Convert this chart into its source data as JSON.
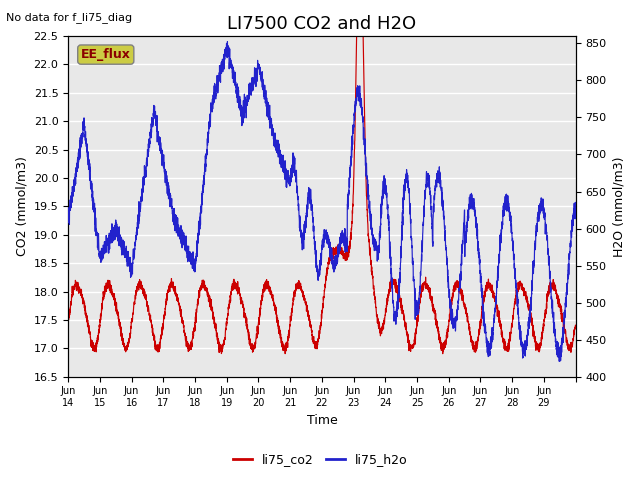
{
  "title": "LI7500 CO2 and H2O",
  "top_left_text": "No data for f_li75_diag",
  "xlabel": "Time",
  "ylabel_left": "CO2 (mmol/m3)",
  "ylabel_right": "H2O (mmol/m3)",
  "ylim_left": [
    16.5,
    22.5
  ],
  "ylim_right": [
    400,
    860
  ],
  "yticks_left": [
    16.5,
    17.0,
    17.5,
    18.0,
    18.5,
    19.0,
    19.5,
    20.0,
    20.5,
    21.0,
    21.5,
    22.0,
    22.5
  ],
  "yticks_right": [
    400,
    450,
    500,
    550,
    600,
    650,
    700,
    750,
    800,
    850
  ],
  "xtick_positions": [
    0,
    1,
    2,
    3,
    4,
    5,
    6,
    7,
    8,
    9,
    10,
    11,
    12,
    13,
    14,
    15,
    16
  ],
  "xtick_labels": [
    "Jun\n14",
    "Jun\n15",
    "Jun\n16",
    "Jun\n17",
    "Jun\n18",
    "Jun\n19",
    "Jun\n20",
    "Jun\n21",
    "Jun\n22",
    "Jun\n23",
    "Jun\n24",
    "Jun\n25",
    "Jun\n26",
    "Jun\n27",
    "Jun\n28",
    "Jun\n29",
    ""
  ],
  "xlim": [
    0,
    16
  ],
  "legend_labels": [
    "li75_co2",
    "li75_h2o"
  ],
  "legend_colors": [
    "#cc0000",
    "#2222cc"
  ],
  "box_label": "EE_flux",
  "box_facecolor": "#cccc44",
  "background_color": "#e8e8e8",
  "grid_color": "#ffffff",
  "co2_color": "#cc0000",
  "h2o_color": "#2222cc",
  "title_fontsize": 13,
  "axis_fontsize": 9,
  "tick_fontsize": 8
}
